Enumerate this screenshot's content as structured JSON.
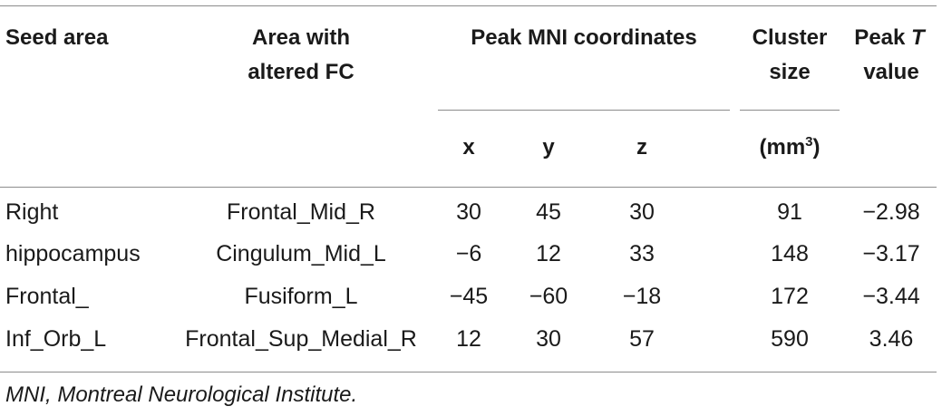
{
  "table": {
    "headers": {
      "seed_area": "Seed area",
      "altered_fc_line1": "Area with",
      "altered_fc_line2": "altered FC",
      "peak_mni": "Peak MNI coordinates",
      "x": "x",
      "y": "y",
      "z": "z",
      "cluster_line1": "Cluster",
      "cluster_line2": "size",
      "cluster_unit_base": "(mm",
      "cluster_unit_sup": "3",
      "cluster_unit_close": ")",
      "peak_t_prefix": "Peak ",
      "peak_t_var": "T",
      "peak_t_line2": "value"
    },
    "rows": [
      {
        "seed": "Right",
        "area": "Frontal_Mid_R",
        "x": "30",
        "y": "45",
        "z": "30",
        "cluster": "91",
        "t": "−2.98"
      },
      {
        "seed": "hippocampus",
        "area": "Cingulum_Mid_L",
        "x": "−6",
        "y": "12",
        "z": "33",
        "cluster": "148",
        "t": "−3.17"
      },
      {
        "seed": "Frontal_",
        "area": "Fusiform_L",
        "x": "−45",
        "y": "−60",
        "z": "−18",
        "cluster": "172",
        "t": "−3.44"
      },
      {
        "seed": "Inf_Orb_L",
        "area": "Frontal_Sup_Medial_R",
        "x": "12",
        "y": "30",
        "z": "57",
        "cluster": "590",
        "t": "3.46"
      }
    ]
  },
  "footnote": "MNI, Montreal Neurological Institute."
}
